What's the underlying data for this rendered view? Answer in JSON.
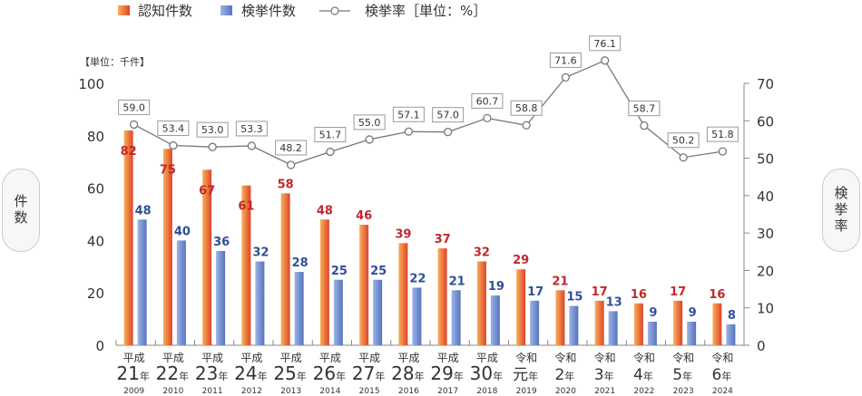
{
  "chart_data": {
    "type": "bar",
    "legend": {
      "placement": "top",
      "items": [
        {
          "name": "認知件数",
          "kind": "bar"
        },
        {
          "name": "検挙件数",
          "kind": "bar"
        },
        {
          "name": "検挙率［単位：%］",
          "kind": "line"
        }
      ]
    },
    "unit_label": "【単位：千件】",
    "ylabel_left": "件数",
    "ylabel_right": "検挙率",
    "ylim_left": [
      0,
      100
    ],
    "yticks_left": [
      0,
      20,
      40,
      60,
      80,
      100
    ],
    "ylim_right": [
      0,
      70
    ],
    "yticks_right": [
      0,
      10,
      20,
      30,
      40,
      50,
      60,
      70
    ],
    "categories": [
      {
        "era": "平成",
        "num": "21",
        "suffix": "年",
        "year": "2009"
      },
      {
        "era": "平成",
        "num": "22",
        "suffix": "年",
        "year": "2010"
      },
      {
        "era": "平成",
        "num": "23",
        "suffix": "年",
        "year": "2011"
      },
      {
        "era": "平成",
        "num": "24",
        "suffix": "年",
        "year": "2012"
      },
      {
        "era": "平成",
        "num": "25",
        "suffix": "年",
        "year": "2013"
      },
      {
        "era": "平成",
        "num": "26",
        "suffix": "年",
        "year": "2014"
      },
      {
        "era": "平成",
        "num": "27",
        "suffix": "年",
        "year": "2015"
      },
      {
        "era": "平成",
        "num": "28",
        "suffix": "年",
        "year": "2016"
      },
      {
        "era": "平成",
        "num": "29",
        "suffix": "年",
        "year": "2017"
      },
      {
        "era": "平成",
        "num": "30",
        "suffix": "年",
        "year": "2018"
      },
      {
        "era": "令和",
        "num": "元",
        "suffix": "年",
        "year": "2019"
      },
      {
        "era": "令和",
        "num": "2",
        "suffix": "年",
        "year": "2020"
      },
      {
        "era": "令和",
        "num": "3",
        "suffix": "年",
        "year": "2021"
      },
      {
        "era": "令和",
        "num": "4",
        "suffix": "年",
        "year": "2022"
      },
      {
        "era": "令和",
        "num": "5",
        "suffix": "年",
        "year": "2023"
      },
      {
        "era": "令和",
        "num": "6",
        "suffix": "年",
        "year": "2024"
      }
    ],
    "series": [
      {
        "name": "認知件数",
        "axis": "left",
        "color": "#e0603a",
        "label_color": "#c0282d",
        "values": [
          82,
          75,
          67,
          61,
          58,
          48,
          46,
          39,
          37,
          32,
          29,
          21,
          17,
          16,
          17,
          16
        ]
      },
      {
        "name": "検挙件数",
        "axis": "left",
        "color": "#6f8fd0",
        "label_color": "#2f4f96",
        "values": [
          48,
          40,
          36,
          32,
          28,
          25,
          25,
          22,
          21,
          19,
          17,
          15,
          13,
          9,
          9,
          8
        ]
      },
      {
        "name": "検挙率",
        "axis": "right",
        "type": "line",
        "color": "#777777",
        "values": [
          59.0,
          53.4,
          53.0,
          53.3,
          48.2,
          51.7,
          55.0,
          57.1,
          57.0,
          60.7,
          58.8,
          71.6,
          76.1,
          58.7,
          50.2,
          51.8
        ]
      }
    ]
  }
}
